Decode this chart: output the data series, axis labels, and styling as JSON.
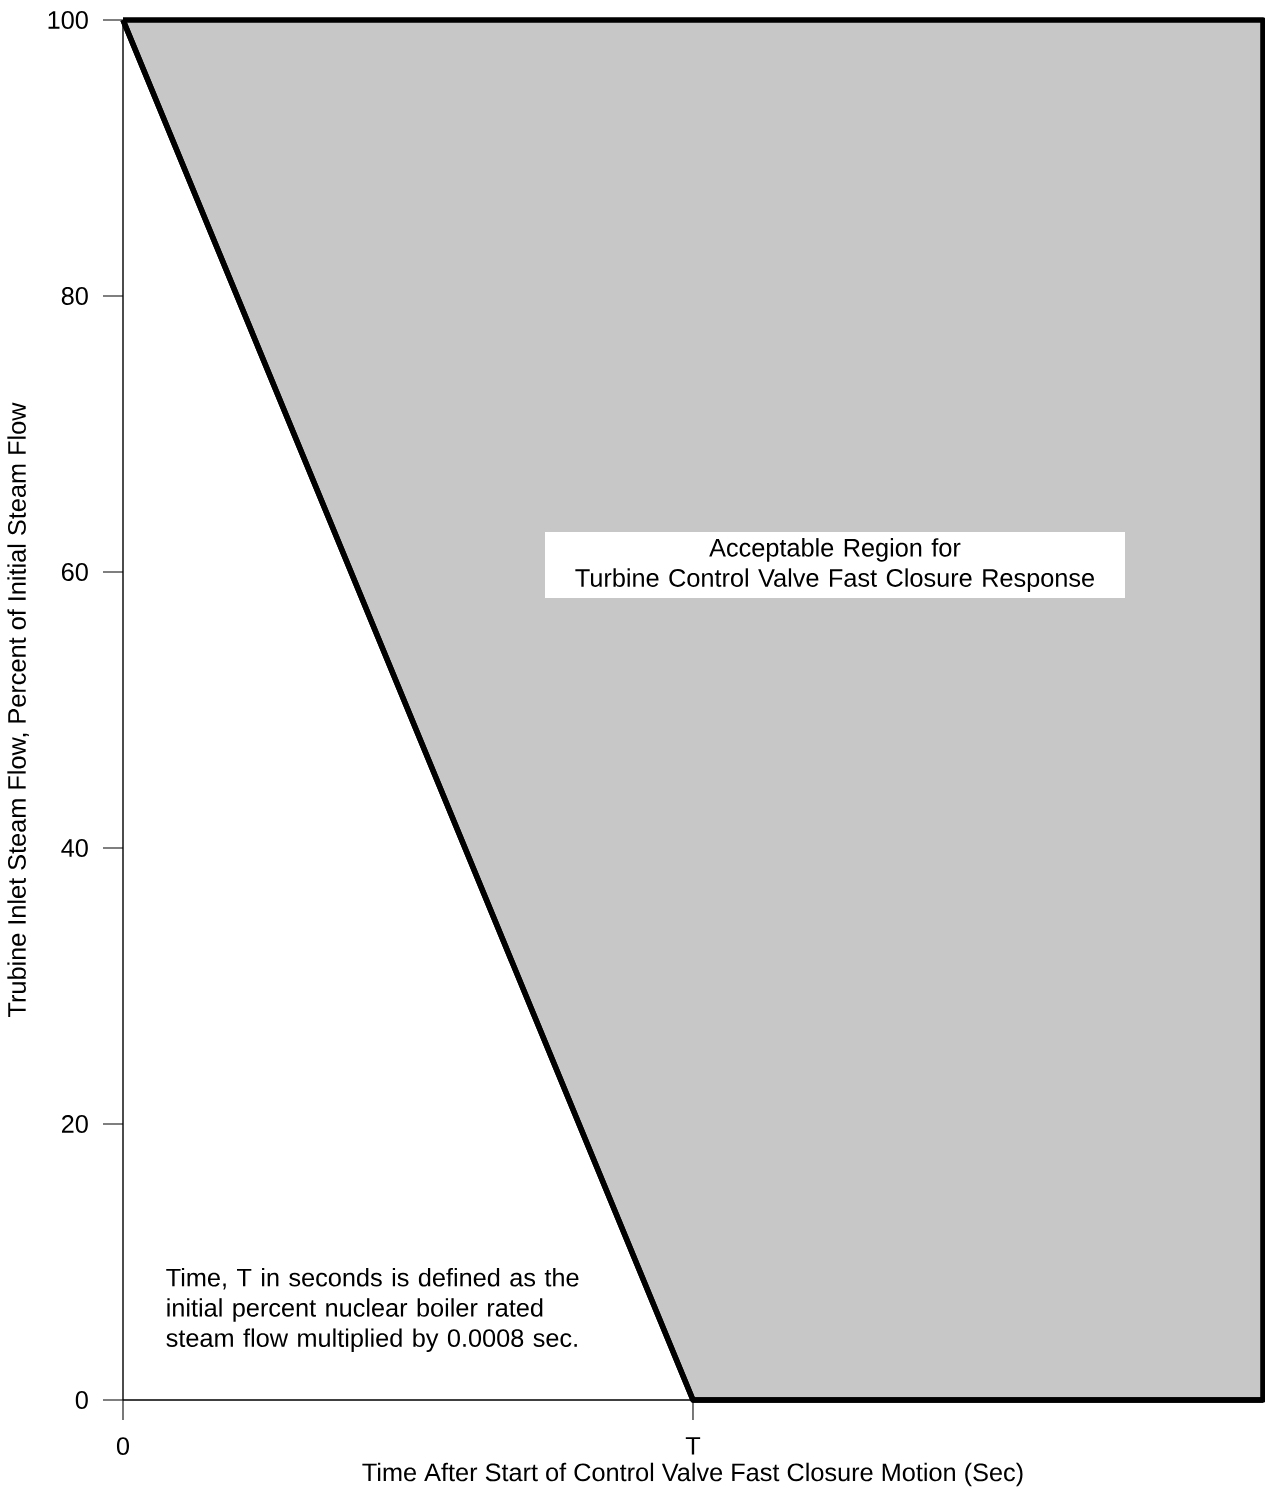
{
  "chart_data": {
    "type": "line",
    "xlabel": "Time After Start of Control Valve Fast Closure Motion (Sec)",
    "ylabel": "Trubine Inlet Steam Flow, Percent of Initial Steam Flow",
    "categories": [
      "0",
      "T",
      null
    ],
    "series": [
      {
        "color": "#000000",
        "values": [
          100,
          0,
          0
        ],
        "lower": [
          100,
          0,
          0
        ],
        "upper": [
          100,
          100,
          100
        ]
      }
    ],
    "ylim": [
      0,
      100
    ],
    "yticks": [
      0,
      20,
      40,
      60,
      80,
      100
    ],
    "grid": false,
    "line_style": "solid",
    "annotations": [
      "Acceptable Region for\nTurbine Control Valve Fast  Closure Response",
      "Time, T in seconds is defined as the\ninitial percent nuclear boiler rated\nsteam flow multiplied by 0.0008 sec."
    ]
  }
}
